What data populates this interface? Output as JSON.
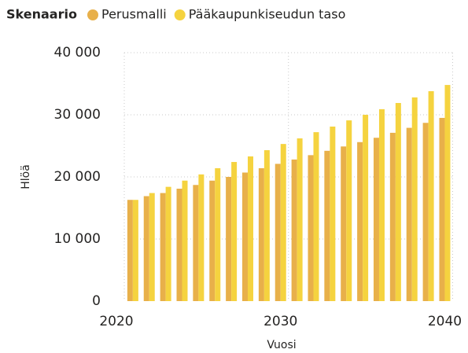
{
  "chart_data": {
    "type": "bar",
    "legend_title": "Skenaario",
    "xlabel": "Vuosi",
    "ylabel": "Hlöä",
    "x": [
      2021,
      2022,
      2023,
      2024,
      2025,
      2026,
      2027,
      2028,
      2029,
      2030,
      2031,
      2032,
      2033,
      2034,
      2035,
      2036,
      2037,
      2038,
      2039,
      2040
    ],
    "series": [
      {
        "name": "Perusmalli",
        "color": "#e8b04a",
        "values": [
          16300,
          16900,
          17400,
          18100,
          18700,
          19400,
          20000,
          20700,
          21400,
          22100,
          22800,
          23500,
          24200,
          24900,
          25600,
          26300,
          27100,
          27900,
          28700,
          29500
        ]
      },
      {
        "name": "Pääkaupunkiseudun taso",
        "color": "#f5d33f",
        "values": [
          16300,
          17400,
          18400,
          19400,
          20400,
          21400,
          22400,
          23300,
          24300,
          25300,
          26200,
          27200,
          28100,
          29100,
          30000,
          30900,
          31900,
          32800,
          33800,
          34800
        ]
      }
    ],
    "xlim": [
      2020,
      2040.6
    ],
    "xticks": [
      2020,
      2030,
      2040
    ],
    "ylim": [
      0,
      40000
    ],
    "yticks": [
      {
        "value": 0,
        "label": "0"
      },
      {
        "value": 10000,
        "label": "10 000"
      },
      {
        "value": 20000,
        "label": "20 000"
      },
      {
        "value": 30000,
        "label": "30 000"
      },
      {
        "value": 40000,
        "label": "40 000"
      }
    ],
    "grid": true
  }
}
